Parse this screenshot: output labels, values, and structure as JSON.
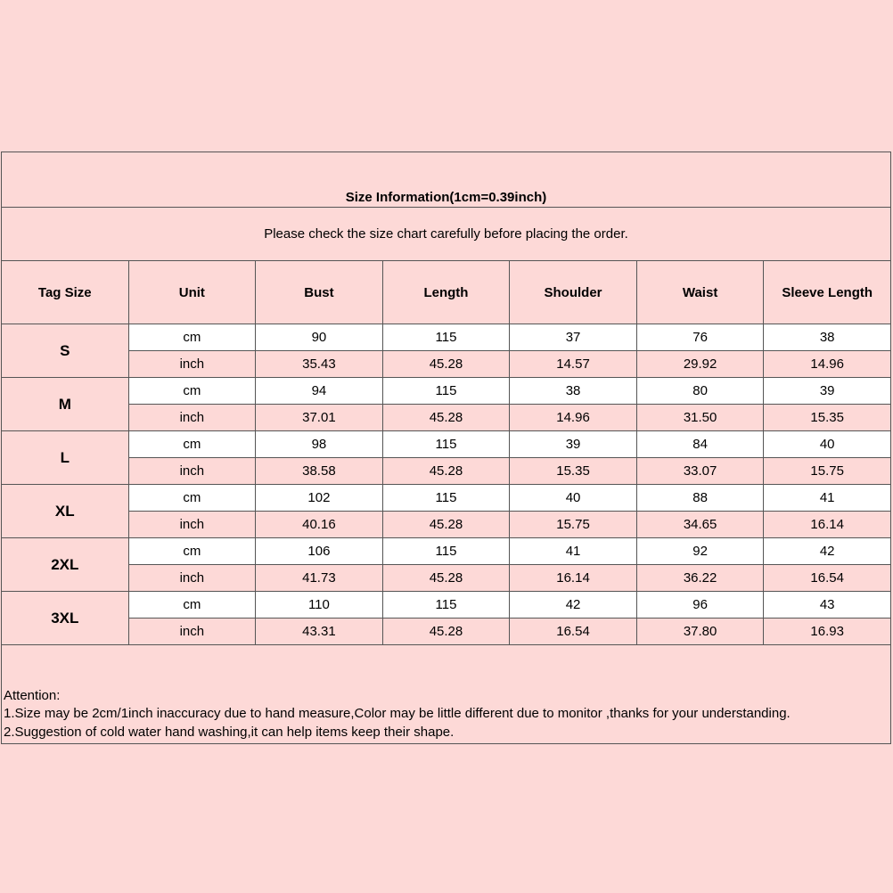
{
  "title": "Size Information(1cm=0.39inch)",
  "subtitle": "Please check the size chart carefully before placing the order.",
  "headers": [
    "Tag Size",
    "Unit",
    "Bust",
    "Length",
    "Shoulder",
    "Waist",
    "Sleeve Length"
  ],
  "colors": {
    "background": "#fdd9d7",
    "cm_row": "#ffffff",
    "border": "#555555"
  },
  "rows": [
    {
      "size": "S",
      "cm": {
        "unit": "cm",
        "values": [
          "90",
          "115",
          "37",
          "76",
          "38"
        ]
      },
      "inch": {
        "unit": "inch",
        "values": [
          "35.43",
          "45.28",
          "14.57",
          "29.92",
          "14.96"
        ]
      }
    },
    {
      "size": "M",
      "cm": {
        "unit": "cm",
        "values": [
          "94",
          "115",
          "38",
          "80",
          "39"
        ]
      },
      "inch": {
        "unit": "inch",
        "values": [
          "37.01",
          "45.28",
          "14.96",
          "31.50",
          "15.35"
        ]
      }
    },
    {
      "size": "L",
      "cm": {
        "unit": "cm",
        "values": [
          "98",
          "115",
          "39",
          "84",
          "40"
        ]
      },
      "inch": {
        "unit": "inch",
        "values": [
          "38.58",
          "45.28",
          "15.35",
          "33.07",
          "15.75"
        ]
      }
    },
    {
      "size": "XL",
      "cm": {
        "unit": "cm",
        "values": [
          "102",
          "115",
          "40",
          "88",
          "41"
        ]
      },
      "inch": {
        "unit": "inch",
        "values": [
          "40.16",
          "45.28",
          "15.75",
          "34.65",
          "16.14"
        ]
      }
    },
    {
      "size": "2XL",
      "cm": {
        "unit": "cm",
        "values": [
          "106",
          "115",
          "41",
          "92",
          "42"
        ]
      },
      "inch": {
        "unit": "inch",
        "values": [
          "41.73",
          "45.28",
          "16.14",
          "36.22",
          "16.54"
        ]
      }
    },
    {
      "size": "3XL",
      "cm": {
        "unit": "cm",
        "values": [
          "110",
          "115",
          "42",
          "96",
          "43"
        ]
      },
      "inch": {
        "unit": "inch",
        "values": [
          "43.31",
          "45.28",
          "16.54",
          "37.80",
          "16.93"
        ]
      }
    }
  ],
  "attention": {
    "heading": "Attention:",
    "notes": [
      "1.Size may be 2cm/1inch inaccuracy due to hand measure,Color may be little different due to monitor ,thanks for your understanding.",
      "2.Suggestion of cold water hand washing,it can help items keep their shape."
    ]
  }
}
